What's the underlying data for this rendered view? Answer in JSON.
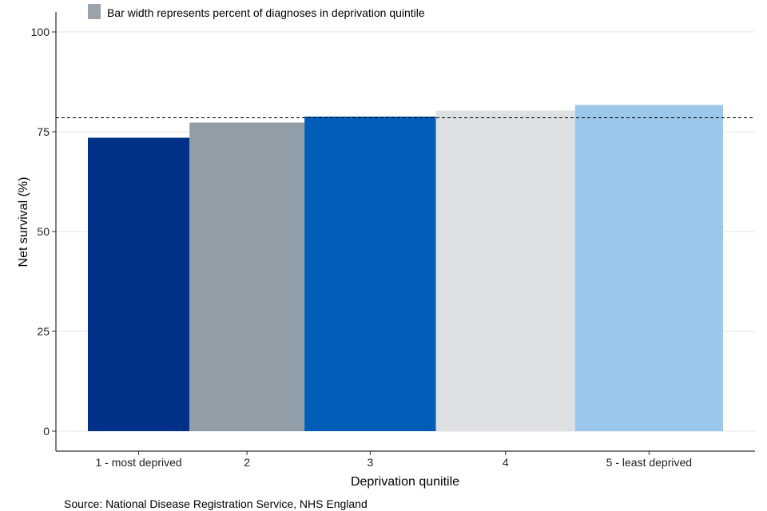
{
  "chart_data": {
    "type": "bar",
    "variable_width": true,
    "title": "",
    "xlabel": "Deprivation qunitile",
    "ylabel": "Net survival (%)",
    "ylim": [
      0,
      100
    ],
    "yticks": [
      0,
      25,
      50,
      75,
      100
    ],
    "grid": true,
    "legend": {
      "position": "top-left",
      "label": "Bar width represents percent of diagnoses in deprivation quintile",
      "color": "#9aa3ab"
    },
    "reference_line": {
      "value": 78.5,
      "style": "dashed"
    },
    "categories": [
      "1 - most deprived",
      "2",
      "3",
      "4",
      "5 - least deprived"
    ],
    "values": [
      73.5,
      77.3,
      78.8,
      80.3,
      81.7
    ],
    "width_percent": [
      16,
      18.1,
      20.7,
      21.9,
      23.3
    ],
    "colors": [
      "#003087",
      "#919ea7",
      "#005eb8",
      "#dee1e4",
      "#9bc7ea"
    ],
    "source": "Source: National Disease Registration Service, NHS England"
  }
}
